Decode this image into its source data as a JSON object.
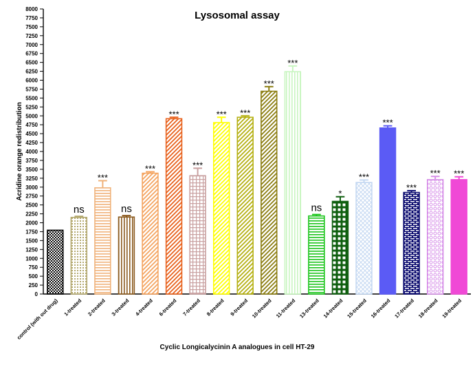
{
  "chart_data": {
    "type": "bar",
    "title": "Lysosomal assay",
    "xlabel": "Cyclic Longicalycinin A analogues in cell HT-29",
    "ylabel": "Acridine orange redistribution",
    "ylim": [
      0,
      8000
    ],
    "yticks": [
      "0",
      "250",
      "500",
      "750",
      "1000",
      "1250",
      "1500",
      "1750",
      "2000",
      "2250",
      "2500",
      "2750",
      "3000",
      "3250",
      "3500",
      "3750",
      "4000",
      "4250",
      "4500",
      "4750",
      "5000",
      "5250",
      "5500",
      "5750",
      "6000",
      "6250",
      "6500",
      "6750",
      "7000",
      "7250",
      "7500",
      "7750",
      "8000"
    ],
    "grid": false,
    "categories": [
      "control (with out drug)",
      "1-treated",
      "2-treated",
      "3-treated",
      "4-treated",
      "6-treated",
      "7-treated",
      "8-treated",
      "9-treated",
      "10-treated",
      "11-treated",
      "13-treated",
      "14-treated",
      "15-treated",
      "16-treated",
      "17-treated",
      "18-treated",
      "19-treated"
    ],
    "values": [
      1790,
      2150,
      2980,
      2160,
      3390,
      4920,
      3320,
      4810,
      4960,
      5690,
      6240,
      2190,
      2600,
      3130,
      4660,
      2850,
      3210,
      3210
    ],
    "errors": [
      0,
      30,
      200,
      40,
      40,
      40,
      210,
      150,
      40,
      130,
      160,
      40,
      130,
      70,
      60,
      50,
      90,
      80
    ],
    "significance": [
      "",
      "ns",
      "***",
      "ns",
      "***",
      "***",
      "***",
      "***",
      "***",
      "***",
      "***",
      "ns",
      "*",
      "***",
      "***",
      "***",
      "***",
      "***"
    ],
    "colors": [
      "#000000",
      "#b3a86e",
      "#f0b27a",
      "#8b5a1e",
      "#f4a460",
      "#e8611c",
      "#c9a0a0",
      "#ffff00",
      "#b5b012",
      "#8b7d10",
      "#c8f5c0",
      "#19c419",
      "#0e5e0e",
      "#c4d8f2",
      "#5b5bf5",
      "#0a0a6e",
      "#d68de8",
      "#f049d6"
    ],
    "patterns": [
      "checker",
      "dots",
      "hlines",
      "vlines",
      "diag",
      "diag",
      "grid",
      "diag",
      "diag",
      "diag",
      "vlines",
      "hlines",
      "bigsquares",
      "crosshatch",
      "solid",
      "bricks",
      "circles",
      "solid"
    ]
  }
}
